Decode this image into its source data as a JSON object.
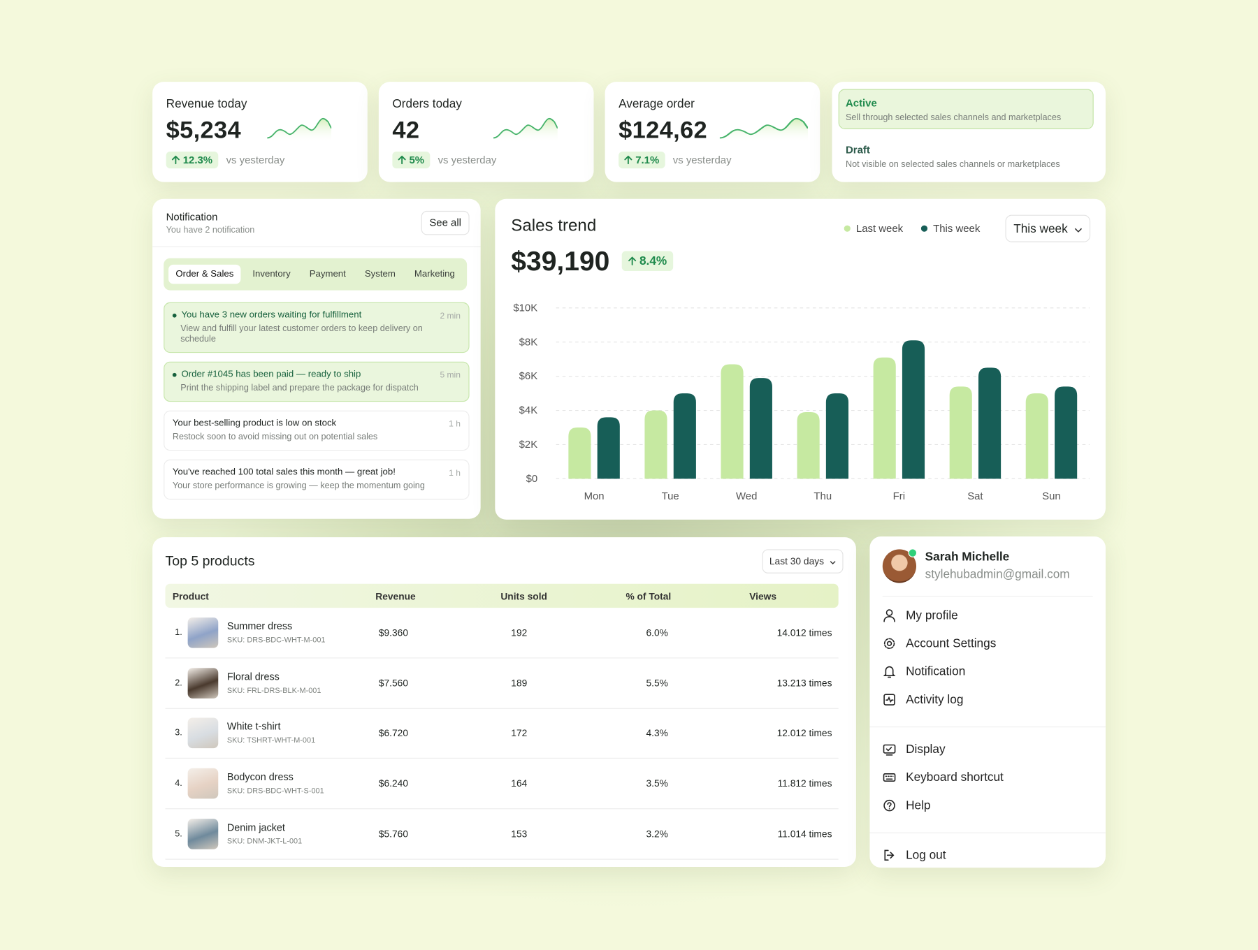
{
  "kpis": [
    {
      "label": "Revenue today",
      "value": "$5,234",
      "change": "12.3%",
      "note": "vs yesterday"
    },
    {
      "label": "Orders today",
      "value": "42",
      "change": "5%",
      "note": "vs yesterday"
    },
    {
      "label": "Average order",
      "value": "$124,62",
      "change": "7.1%",
      "note": "vs yesterday"
    }
  ],
  "status_options": [
    {
      "title": "Active",
      "description": "Sell through selected sales channels and marketplaces",
      "selected": true
    },
    {
      "title": "Draft",
      "description": "Not visible on selected sales channels or marketplaces",
      "selected": false
    }
  ],
  "notifications": {
    "title": "Notification",
    "subtitle": "You have 2 notification",
    "action": "See all",
    "tabs": [
      "Order & Sales",
      "Inventory",
      "Payment",
      "System",
      "Marketing"
    ],
    "items": [
      {
        "title": "You have 3 new orders waiting for fulfillment",
        "time": "2 min",
        "body": "View and fulfill your latest customer orders to keep delivery on schedule",
        "highlighted": true
      },
      {
        "title": "Order #1045 has been paid — ready to ship",
        "time": "5 min",
        "body": "Print the shipping label and prepare the package for dispatch",
        "highlighted": true
      },
      {
        "title": "Your best-selling product is low on stock",
        "time": "1 h",
        "body": "Restock soon to avoid missing out on potential sales",
        "highlighted": false
      },
      {
        "title": "You've reached 100 total sales this month — great job!",
        "time": "1 h",
        "body": "Your store performance is growing — keep the momentum going",
        "highlighted": false
      }
    ]
  },
  "chart_data": {
    "type": "bar",
    "title": "Sales trend",
    "headline": "$39,190",
    "change": "8.4%",
    "period": "This week",
    "categories": [
      "Mon",
      "Tue",
      "Wed",
      "Thu",
      "Fri",
      "Sat",
      "Sun"
    ],
    "series": [
      {
        "name": "Last week",
        "color": "#c6e9a1",
        "values": [
          3000,
          4000,
          6700,
          3900,
          7100,
          5400,
          5000
        ]
      },
      {
        "name": "This week",
        "color": "#175e57",
        "values": [
          3600,
          5000,
          5900,
          5000,
          8100,
          6500,
          5400
        ]
      }
    ],
    "ylim": [
      0,
      10000
    ],
    "yticks": [
      {
        "value": 0,
        "label": "$0"
      },
      {
        "value": 2000,
        "label": "$2K"
      },
      {
        "value": 4000,
        "label": "$4K"
      },
      {
        "value": 6000,
        "label": "$6K"
      },
      {
        "value": 8000,
        "label": "$8K"
      },
      {
        "value": 10000,
        "label": "$10K"
      }
    ],
    "grid": true
  },
  "top_products": {
    "title": "Top 5 products",
    "period": "Last 30 days",
    "columns": [
      "Product",
      "Revenue",
      "Units sold",
      "% of Total",
      "Views"
    ],
    "rows": [
      {
        "rank": "1.",
        "name": "Summer dress",
        "sku": "SKU: DRS-BDC-WHT-M-001",
        "revenue": "$9.360",
        "units": 192,
        "share": "6.0%",
        "views": "14.012 times"
      },
      {
        "rank": "2.",
        "name": "Floral dress",
        "sku": "SKU: FRL-DRS-BLK-M-001",
        "revenue": "$7.560",
        "units": 189,
        "share": "5.5%",
        "views": "13.213 times"
      },
      {
        "rank": "3.",
        "name": "White t-shirt",
        "sku": "SKU: TSHRT-WHT-M-001",
        "revenue": "$6.720",
        "units": 172,
        "share": "4.3%",
        "views": "12.012 times"
      },
      {
        "rank": "4.",
        "name": "Bodycon dress",
        "sku": "SKU: DRS-BDC-WHT-S-001",
        "revenue": "$6.240",
        "units": 164,
        "share": "3.5%",
        "views": "11.812 times"
      },
      {
        "rank": "5.",
        "name": "Denim jacket",
        "sku": "SKU: DNM-JKT-L-001",
        "revenue": "$5.760",
        "units": 153,
        "share": "3.2%",
        "views": "11.014 times"
      }
    ]
  },
  "profile": {
    "name": "Sarah Michelle",
    "email": "stylehubadmin@gmail.com",
    "menu": [
      [
        "My profile",
        "Account Settings",
        "Notification",
        "Activity log"
      ],
      [
        "Display",
        "Keyboard shortcut",
        "Help"
      ],
      [
        "Log out"
      ]
    ]
  }
}
